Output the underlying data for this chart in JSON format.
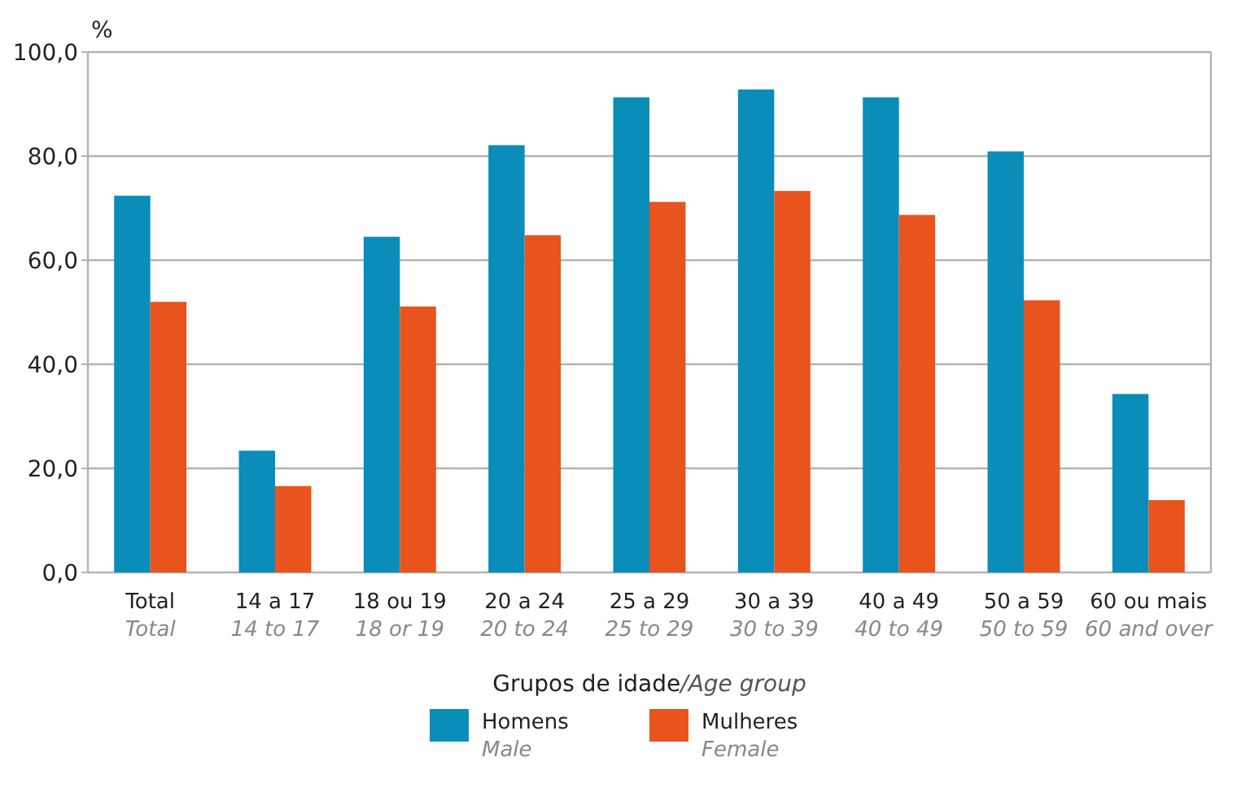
{
  "chart_data": {
    "type": "bar",
    "ylabel": "%",
    "xlabel": "Grupos de idade/Age group",
    "categories": [
      "Total\nTotal",
      "14 a 17\n14 to 17",
      "18 ou 19\n18 or 19",
      "20 a 24\n20 to 24",
      "25 a 29\n25 to 29",
      "30 a 39\n30 to 39",
      "40 a 49\n40 to 49",
      "50 a 59\n50 to 59",
      "60 ou mais\n60 and over"
    ],
    "series": [
      {
        "name": "Homens\nMale",
        "color": "#0a8db8",
        "values": [
          72.4,
          23.4,
          64.5,
          82.1,
          91.3,
          92.8,
          91.3,
          80.9,
          34.3
        ]
      },
      {
        "name": "Mulheres\nFemale",
        "color": "#e8531e",
        "values": [
          52.0,
          16.6,
          51.1,
          64.8,
          71.2,
          73.3,
          68.7,
          52.3,
          13.9
        ]
      }
    ],
    "ylim": [
      0,
      100
    ],
    "yticks": [
      {
        "value": 0,
        "label": "0,0"
      },
      {
        "value": 20,
        "label": "20,0"
      },
      {
        "value": 40,
        "label": "40,0"
      },
      {
        "value": 60,
        "label": "60,0"
      },
      {
        "value": 80,
        "label": "80,0"
      },
      {
        "value": 100,
        "label": "100,0"
      }
    ],
    "grid": "y",
    "legend": "bottom"
  }
}
